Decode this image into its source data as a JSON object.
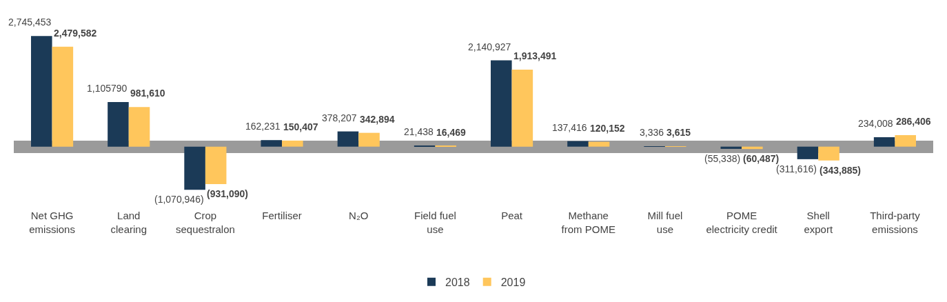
{
  "chart_data": {
    "type": "bar",
    "categories": [
      "Net GHG\nemissions",
      "Land\nclearing",
      "Crop\nsequestralon",
      "Fertiliser",
      "N₂O",
      "Field fuel\nuse",
      "Peat",
      "Methane\nfrom POME",
      "Mill fuel\nuse",
      "POME\nelectricity credit",
      "Shell\nexport",
      "Third-party\nemissions"
    ],
    "series": [
      {
        "name": "2018",
        "color": "#1b3a57",
        "values": [
          2745453,
          1105790,
          -1070946,
          162231,
          378207,
          21438,
          2140927,
          137416,
          3336,
          -55338,
          -311616,
          234008
        ],
        "value_labels": [
          "2,745,453",
          "1,105790",
          "(1,070,946)",
          "162,231",
          "378,207",
          "21,438",
          "2,140,927",
          "137,416",
          "3,336",
          "(55,338)",
          "(311,616)",
          "234,008"
        ]
      },
      {
        "name": "2019",
        "color": "#ffc65c",
        "values": [
          2479582,
          981610,
          -931090,
          150407,
          342894,
          16469,
          1913491,
          120152,
          3615,
          -60487,
          -343885,
          286406
        ],
        "value_labels": [
          "2,479,582",
          "981,610",
          "(931,090)",
          "150,407",
          "342,894",
          "16,469",
          "1,913,491",
          "120,152",
          "3,615",
          "(60,487)",
          "(343,885)",
          "286,406"
        ]
      }
    ],
    "legend": "bottom"
  }
}
